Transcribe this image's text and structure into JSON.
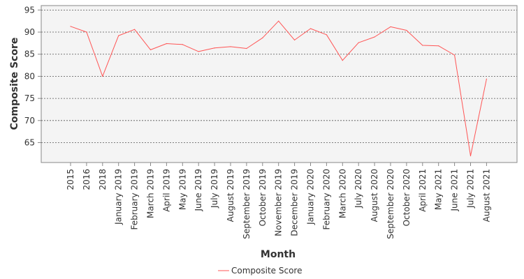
{
  "chart_data": {
    "type": "line",
    "title": "",
    "xlabel": "Month",
    "ylabel": "Composite Score",
    "ylim": [
      60.5,
      96
    ],
    "yticks": [
      65,
      70,
      75,
      80,
      85,
      90,
      95
    ],
    "grid": true,
    "legend": "bottom",
    "categories": [
      "2015",
      "2016",
      "2018",
      "January 2019",
      "February 2019",
      "March 2019",
      "April 2019",
      "May 2019",
      "June 2019",
      "July 2019",
      "August 2019",
      "September 2019",
      "October 2019",
      "November 2019",
      "December 2019",
      "January 2020",
      "February 2020",
      "March 2020",
      "July 2020",
      "August 2020",
      "September 2020",
      "October 2020",
      "April 2021",
      "May 2021",
      "June 2021",
      "July 2021",
      "August 2021"
    ],
    "series": [
      {
        "name": "Composite Score",
        "color": "#ff5555",
        "values": [
          91.3,
          90.0,
          80.0,
          89.2,
          90.6,
          86.0,
          87.4,
          87.2,
          85.6,
          86.4,
          86.7,
          86.3,
          88.7,
          92.5,
          88.2,
          90.8,
          89.4,
          83.6,
          87.6,
          88.9,
          91.2,
          90.4,
          87.0,
          86.9,
          84.8,
          62.0,
          79.4
        ]
      }
    ]
  }
}
